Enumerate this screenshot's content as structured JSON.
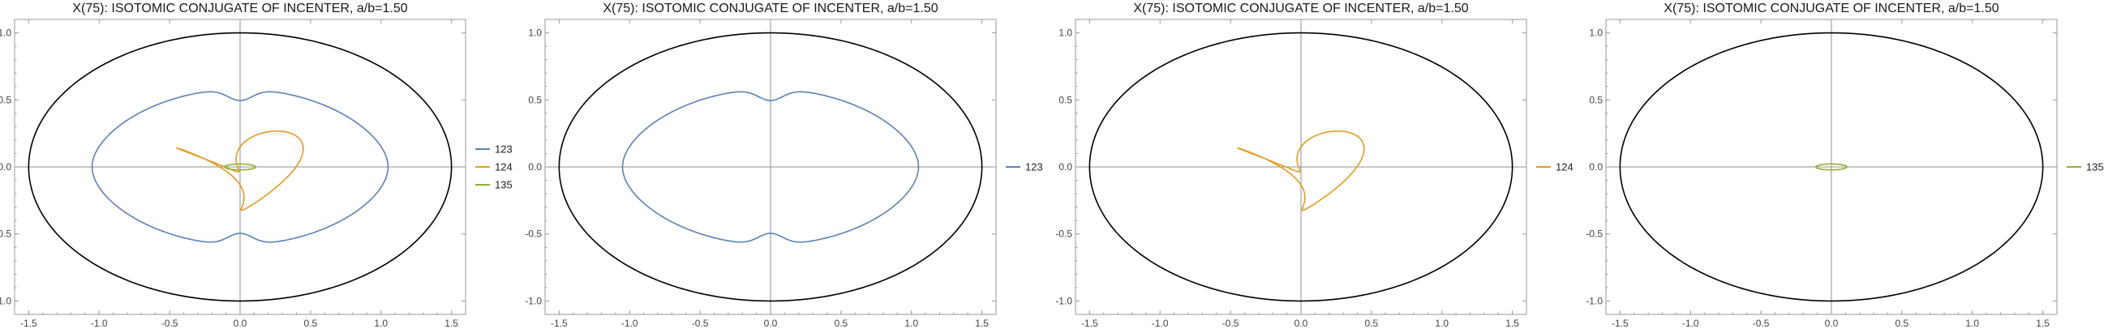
{
  "chart_data": [
    {
      "type": "line",
      "title": "X(75): ISOTOMIC CONJUGATE OF INCENTER, a/b=1.50",
      "xlabel": "",
      "ylabel": "",
      "xlim": [
        -1.6,
        1.6
      ],
      "ylim": [
        -1.1,
        1.1
      ],
      "xticks": [
        "-1.5",
        "-1.0",
        "-0.5",
        "0.0",
        "0.5",
        "1.0",
        "1.5"
      ],
      "yticks": [
        "-1.0",
        "-0.5",
        "0.0",
        "0.5",
        "1.0"
      ],
      "grid": false,
      "legend_position": "right",
      "ellipse": {
        "a": 1.5,
        "b": 1.0,
        "color": "#000000"
      },
      "series": [
        {
          "name": "123",
          "color": "#5e81b5",
          "kind": "kidney"
        },
        {
          "name": "124",
          "color": "#e19c24",
          "kind": "loop"
        },
        {
          "name": "135",
          "color": "#8fb032",
          "kind": "small-ellipse"
        }
      ]
    },
    {
      "type": "line",
      "title": "X(75): ISOTOMIC CONJUGATE OF INCENTER, a/b=1.50",
      "xlabel": "",
      "ylabel": "",
      "xlim": [
        -1.6,
        1.6
      ],
      "ylim": [
        -1.1,
        1.1
      ],
      "xticks": [
        "-1.5",
        "-1.0",
        "-0.5",
        "0.0",
        "0.5",
        "1.0",
        "1.5"
      ],
      "yticks": [
        "-1.0",
        "-0.5",
        "0.0",
        "0.5",
        "1.0"
      ],
      "grid": false,
      "legend_position": "right",
      "ellipse": {
        "a": 1.5,
        "b": 1.0,
        "color": "#000000"
      },
      "series": [
        {
          "name": "123",
          "color": "#5e81b5",
          "kind": "kidney"
        }
      ]
    },
    {
      "type": "line",
      "title": "X(75): ISOTOMIC CONJUGATE OF INCENTER, a/b=1.50",
      "xlabel": "",
      "ylabel": "",
      "xlim": [
        -1.6,
        1.6
      ],
      "ylim": [
        -1.1,
        1.1
      ],
      "xticks": [
        "-1.5",
        "-1.0",
        "-0.5",
        "0.0",
        "0.5",
        "1.0",
        "1.5"
      ],
      "yticks": [
        "-1.0",
        "-0.5",
        "0.0",
        "0.5",
        "1.0"
      ],
      "grid": false,
      "legend_position": "right",
      "ellipse": {
        "a": 1.5,
        "b": 1.0,
        "color": "#000000"
      },
      "series": [
        {
          "name": "124",
          "color": "#e19c24",
          "kind": "loop"
        }
      ]
    },
    {
      "type": "line",
      "title": "X(75): ISOTOMIC CONJUGATE OF INCENTER, a/b=1.50",
      "xlabel": "",
      "ylabel": "",
      "xlim": [
        -1.6,
        1.6
      ],
      "ylim": [
        -1.1,
        1.1
      ],
      "xticks": [
        "-1.5",
        "-1.0",
        "-0.5",
        "0.0",
        "0.5",
        "1.0",
        "1.5"
      ],
      "yticks": [
        "-1.0",
        "-0.5",
        "0.0",
        "0.5",
        "1.0"
      ],
      "grid": false,
      "legend_position": "right",
      "ellipse": {
        "a": 1.5,
        "b": 1.0,
        "color": "#000000"
      },
      "series": [
        {
          "name": "135",
          "color": "#8fb032",
          "kind": "small-ellipse"
        }
      ]
    }
  ]
}
